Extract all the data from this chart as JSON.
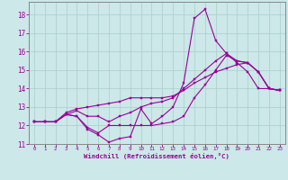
{
  "xlabel": "Windchill (Refroidissement éolien,°C)",
  "background_color": "#cce8e8",
  "grid_color": "#aacccc",
  "line_color": "#990099",
  "xlim_min": -0.5,
  "xlim_max": 23.5,
  "ylim_min": 11.0,
  "ylim_max": 18.7,
  "xticks": [
    0,
    1,
    2,
    3,
    4,
    5,
    6,
    7,
    8,
    9,
    10,
    11,
    12,
    13,
    14,
    15,
    16,
    17,
    18,
    19,
    20,
    21,
    22,
    23
  ],
  "yticks": [
    11,
    12,
    13,
    14,
    15,
    16,
    17,
    18
  ],
  "series": [
    [
      12.2,
      12.2,
      12.2,
      12.6,
      12.5,
      11.8,
      11.5,
      11.1,
      11.3,
      11.4,
      12.9,
      12.1,
      12.5,
      13.0,
      14.3,
      17.8,
      18.3,
      16.6,
      15.9,
      15.4,
      14.9,
      14.0,
      14.0,
      13.9
    ],
    [
      12.2,
      12.2,
      12.2,
      12.6,
      12.5,
      11.9,
      11.6,
      12.0,
      12.0,
      12.0,
      12.0,
      12.0,
      12.1,
      12.2,
      12.5,
      13.5,
      14.2,
      15.0,
      15.8,
      15.5,
      15.4,
      14.9,
      14.0,
      13.9
    ],
    [
      12.2,
      12.2,
      12.2,
      12.6,
      12.8,
      12.5,
      12.5,
      12.2,
      12.5,
      12.7,
      13.0,
      13.2,
      13.3,
      13.5,
      14.0,
      14.5,
      15.0,
      15.5,
      15.9,
      15.5,
      15.4,
      14.9,
      14.0,
      13.9
    ],
    [
      12.2,
      12.2,
      12.2,
      12.7,
      12.9,
      13.0,
      13.1,
      13.2,
      13.3,
      13.5,
      13.5,
      13.5,
      13.5,
      13.6,
      13.9,
      14.3,
      14.6,
      14.9,
      15.1,
      15.3,
      15.4,
      14.9,
      14.0,
      13.9
    ]
  ]
}
